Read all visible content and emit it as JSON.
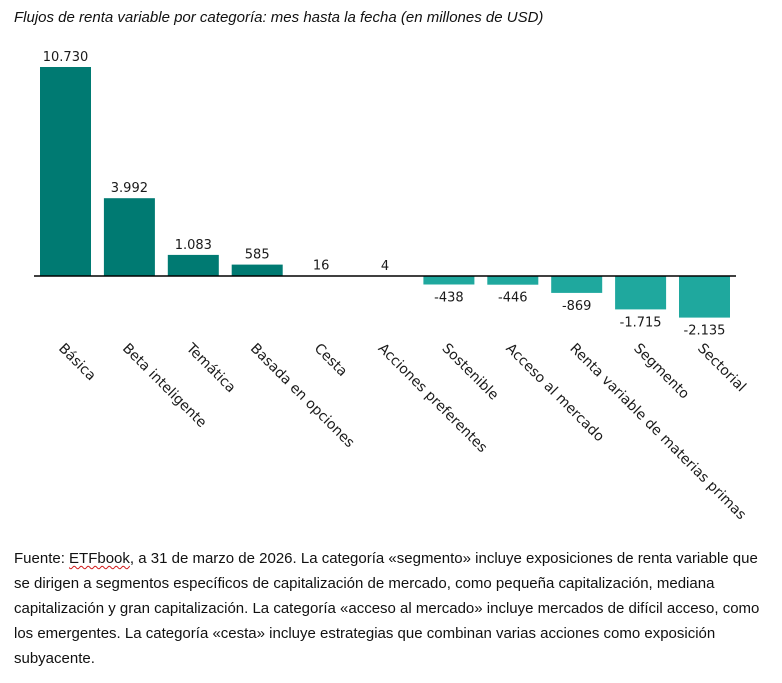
{
  "chart_data": {
    "type": "bar",
    "title": "Flujos de renta variable por categoría: mes hasta la fecha (en millones de USD)",
    "categories": [
      "Básica",
      "Beta inteligente",
      "Temática",
      "Basada en opciones",
      "Cesta",
      "Acciones preferentes",
      "Sostenible",
      "Acceso al mercado",
      "Renta variable de materias primas",
      "Segmento",
      "Sectorial"
    ],
    "values": [
      10730,
      3992,
      1083,
      585,
      16,
      4,
      -438,
      -446,
      -869,
      -1715,
      -2135
    ],
    "value_labels": [
      "10.730",
      "3.992",
      "1.083",
      "585",
      "16",
      "4",
      "-438",
      "-446",
      "-869",
      "-1.715",
      "-2.135"
    ],
    "xlabel": "",
    "ylabel": "",
    "ylim": [
      -2135,
      10730
    ],
    "grid": false,
    "colors": {
      "positive": "#007A72",
      "negative": "#1FA89E",
      "baseline": "#000000"
    }
  },
  "footnote": {
    "prefix": "Fuente: ",
    "source": "ETFbook",
    "text": ", a 31 de marzo de 2026. La categoría «segmento» incluye exposiciones de renta variable que se dirigen a segmentos específicos de capitalización de mercado, como pequeña capitalización, mediana capitalización y gran capitalización. La categoría «acceso al mercado» incluye mercados de difícil acceso, como los emergentes. La categoría «cesta» incluye estrategias que combinan varias acciones como exposición subyacente."
  }
}
